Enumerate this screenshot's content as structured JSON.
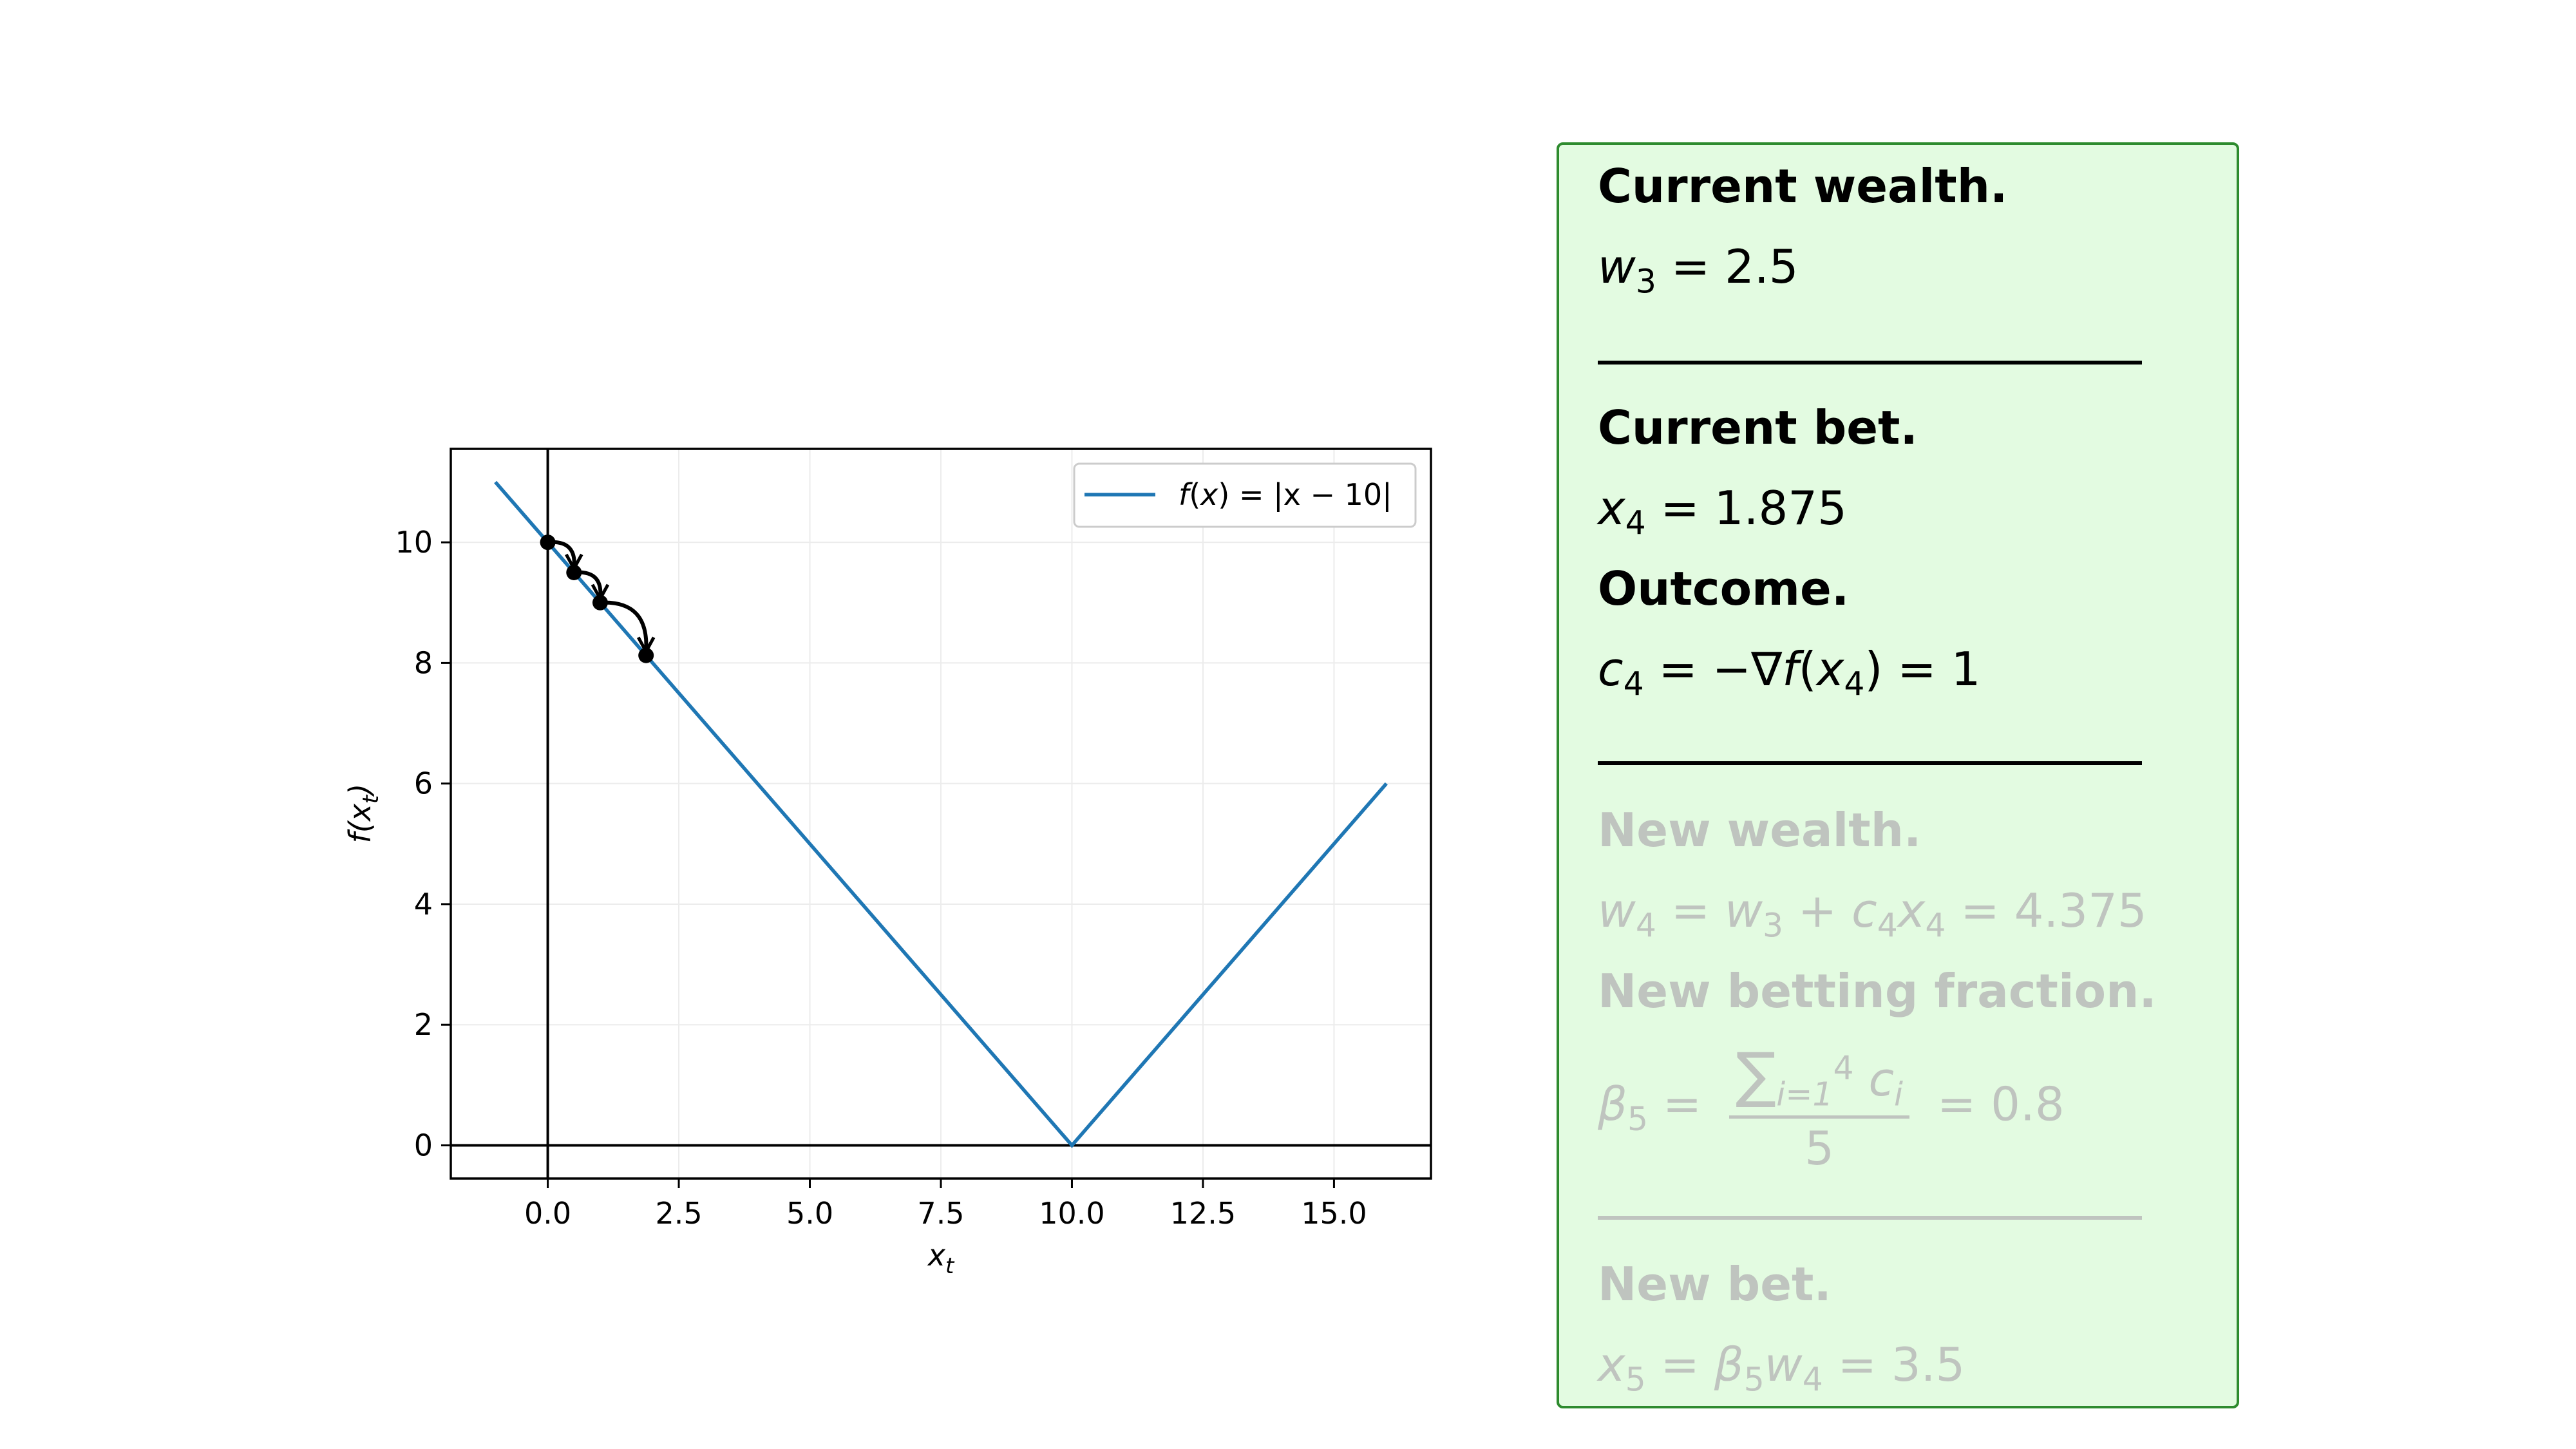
{
  "chart_data": {
    "type": "line",
    "series": [
      {
        "name": "f(x) = |x − 10|",
        "x": [
          -1,
          10,
          16
        ],
        "y": [
          11,
          0,
          6
        ],
        "color": "#1f77b4"
      }
    ],
    "iterates": [
      {
        "x": 0,
        "y": 10
      },
      {
        "x": 0.5,
        "y": 9.5
      },
      {
        "x": 1.0,
        "y": 9.0
      },
      {
        "x": 1.875,
        "y": 8.125
      }
    ],
    "xlabel": "x_t",
    "ylabel": "f(x_t)",
    "xlim": [
      -1.85,
      16.85
    ],
    "ylim": [
      -0.55,
      11.55
    ],
    "xticks": [
      0,
      2.5,
      5,
      7.5,
      10,
      12.5,
      15
    ],
    "xtick_labels": [
      "0.0",
      "2.5",
      "5.0",
      "7.5",
      "10.0",
      "12.5",
      "15.0"
    ],
    "yticks": [
      0,
      2,
      4,
      6,
      8,
      10
    ],
    "ytick_labels": [
      "0",
      "2",
      "4",
      "6",
      "8",
      "10"
    ],
    "grid": true,
    "legend_position": "top-right",
    "legend": {
      "text_f": "f",
      "text_x": "x",
      "text_expr": "|x − 10|"
    }
  },
  "panel": {
    "current_wealth": {
      "label": "Current wealth.",
      "var": "w",
      "sub": "3",
      "value": "2.5"
    },
    "current_bet": {
      "label": "Current bet.",
      "var": "x",
      "sub": "4",
      "value": "1.875"
    },
    "outcome": {
      "label": "Outcome.",
      "var": "c",
      "sub": "4",
      "grad_var": "x",
      "grad_sub": "4",
      "value": "1"
    },
    "new_wealth": {
      "label": "New wealth.",
      "lhs_sub": "4",
      "w_sub": "3",
      "c_sub": "4",
      "x_sub": "4",
      "value": "4.375"
    },
    "new_betting_fraction": {
      "label": "New betting fraction.",
      "beta_sub": "5",
      "sum_from": "i=1",
      "sum_to": "4",
      "denominator": "5",
      "value": "0.8"
    },
    "new_bet": {
      "label": "New bet.",
      "x_sub": "5",
      "beta_sub": "5",
      "w_sub": "4",
      "value": "3.5"
    },
    "colors": {
      "background": "#e3fbe1",
      "border": "#2e8b2e",
      "faded_text": "#bfc4bf"
    }
  }
}
